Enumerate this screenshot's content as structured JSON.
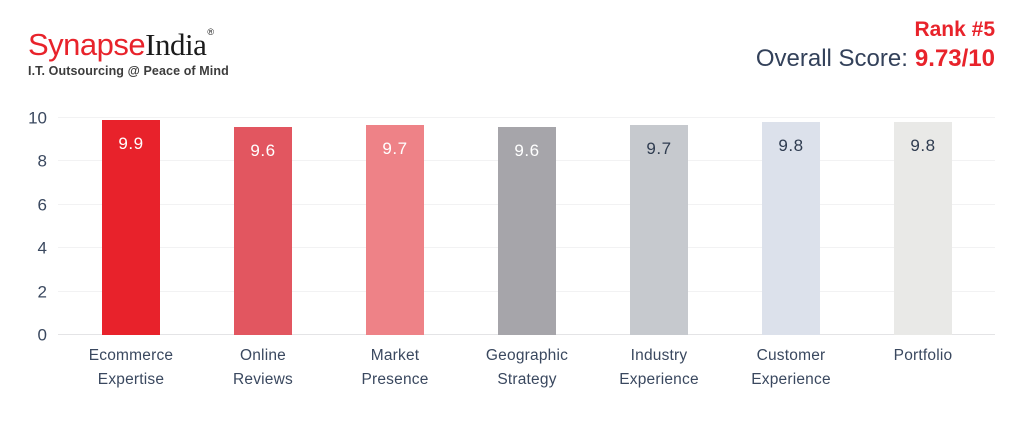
{
  "header": {
    "logo": {
      "brand_primary": "Synapse",
      "brand_secondary": "India",
      "registered_mark": "®",
      "tagline": "I.T. Outsourcing @ Peace of Mind"
    },
    "rank_label": "Rank #5",
    "overall_score_label": "Overall Score:",
    "overall_score_value": "9.73/10"
  },
  "colors": {
    "brand_red": "#e8232b",
    "slate_text": "#3a485f",
    "gridline": "#f2f2f3",
    "baseline": "#e4e4e6",
    "background": "#ffffff"
  },
  "chart_data": {
    "type": "bar",
    "title": "",
    "xlabel": "",
    "ylabel": "",
    "categories": [
      "Ecommerce Expertise",
      "Online Reviews",
      "Market Presence",
      "Geographic Strategy",
      "Industry Experience",
      "Customer Experience",
      "Portfolio"
    ],
    "category_lines": [
      [
        "Ecommerce",
        "Expertise"
      ],
      [
        "Online",
        "Reviews"
      ],
      [
        "Market",
        "Presence"
      ],
      [
        "Geographic",
        "Strategy"
      ],
      [
        "Industry",
        "Experience"
      ],
      [
        "Customer",
        "Experience"
      ],
      [
        "Portfolio"
      ]
    ],
    "values": [
      9.9,
      9.6,
      9.7,
      9.6,
      9.7,
      9.8,
      9.8
    ],
    "bar_colors": [
      "#e8222b",
      "#e25660",
      "#ee8287",
      "#a6a5aa",
      "#c6c9ce",
      "#dce1eb",
      "#e9e9e7"
    ],
    "value_label_colors": [
      "#ffffff",
      "#ffffff",
      "#ffffff",
      "#ffffff",
      "#2f3c50",
      "#2f3c50",
      "#2f3c50"
    ],
    "ylim": [
      0,
      10
    ],
    "yticks": [
      0,
      2,
      4,
      6,
      8,
      10
    ],
    "grid": true,
    "legend": false,
    "value_labels_shown": true
  }
}
